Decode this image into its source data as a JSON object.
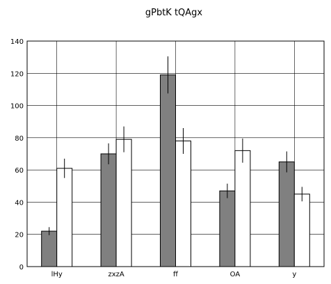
{
  "chart_data": {
    "type": "bar",
    "title": "gPbtK tQAgx",
    "xlabel": "",
    "ylabel": "",
    "categories": [
      "lHy",
      "zxzA",
      "ff",
      "OA",
      "y"
    ],
    "ylim": [
      0,
      140
    ],
    "yticks": [
      0,
      20,
      40,
      60,
      80,
      100,
      120,
      140
    ],
    "grid": true,
    "series": [
      {
        "color": "#808080",
        "values": [
          22,
          70,
          119,
          47,
          65
        ],
        "errors": [
          2.5,
          6.5,
          11.5,
          4.5,
          6.5
        ]
      },
      {
        "color": "#ffffff",
        "values": [
          61,
          79,
          78,
          72,
          45
        ],
        "errors": [
          6,
          8,
          8,
          7.5,
          4.5
        ]
      }
    ]
  }
}
